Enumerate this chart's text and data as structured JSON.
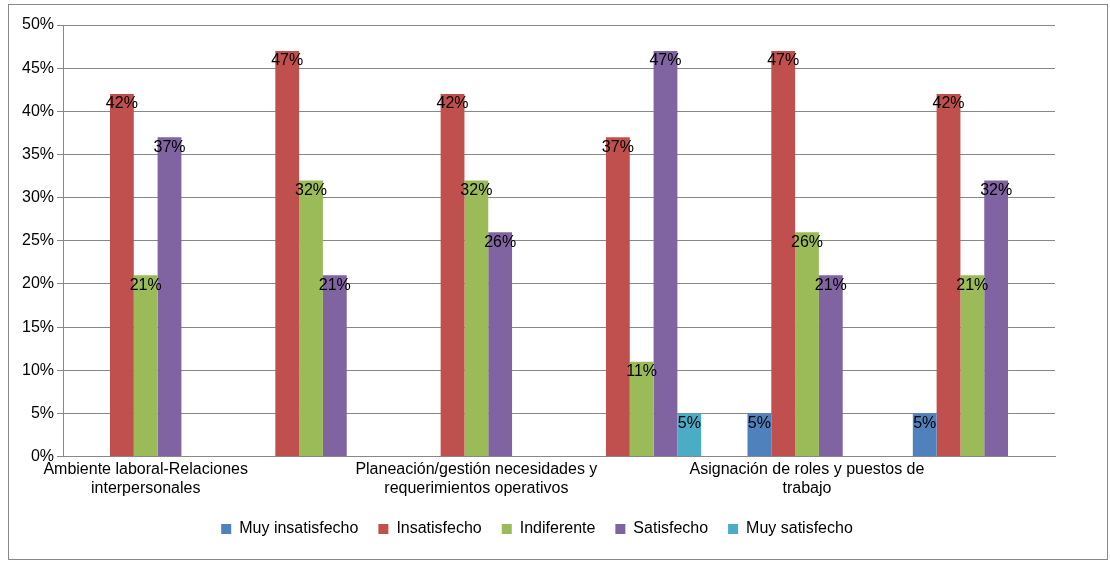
{
  "chart_data": {
    "type": "bar",
    "categories": [
      "Ambiente laboral-Relaciones interpersonales",
      null,
      "Planeación/gestión necesidades y requerimientos operativos",
      null,
      "Asignación de roles y puestos de trabajo",
      null
    ],
    "series": [
      {
        "name": "Muy insatisfecho",
        "color": "#4f81bd",
        "values": [
          null,
          null,
          null,
          null,
          5,
          5
        ],
        "value_labels": [
          null,
          null,
          null,
          null,
          "5%",
          "5%"
        ]
      },
      {
        "name": "Insatisfecho",
        "color": "#c0504d",
        "values": [
          42,
          47,
          42,
          37,
          47,
          42
        ],
        "value_labels": [
          "42%",
          "47%",
          "42%",
          "37%",
          "47%",
          "42%"
        ]
      },
      {
        "name": "Indiferente",
        "color": "#9bbb59",
        "values": [
          21,
          32,
          32,
          11,
          26,
          21
        ],
        "value_labels": [
          "21%",
          "32%",
          "32%",
          "11%",
          "26%",
          "21%"
        ]
      },
      {
        "name": "Satisfecho",
        "color": "#8064a2",
        "values": [
          37,
          21,
          26,
          47,
          21,
          32
        ],
        "value_labels": [
          "37%",
          "21%",
          "26%",
          "47%",
          "21%",
          "32%"
        ]
      },
      {
        "name": "Muy satisfecho",
        "color": "#4bacc6",
        "values": [
          null,
          null,
          null,
          5,
          null,
          null
        ],
        "value_labels": [
          null,
          null,
          null,
          "5%",
          null,
          null
        ]
      }
    ],
    "ylim": [
      0,
      50
    ],
    "yticks": [
      {
        "value": 0,
        "label": "0%"
      },
      {
        "value": 5,
        "label": "5%"
      },
      {
        "value": 10,
        "label": "10%"
      },
      {
        "value": 15,
        "label": "15%"
      },
      {
        "value": 20,
        "label": "20%"
      },
      {
        "value": 25,
        "label": "25%"
      },
      {
        "value": 30,
        "label": "30%"
      },
      {
        "value": 35,
        "label": "35%"
      },
      {
        "value": 40,
        "label": "40%"
      },
      {
        "value": 45,
        "label": "45%"
      },
      {
        "value": 50,
        "label": "50%"
      }
    ],
    "grid": "y",
    "legend": "bottom"
  }
}
